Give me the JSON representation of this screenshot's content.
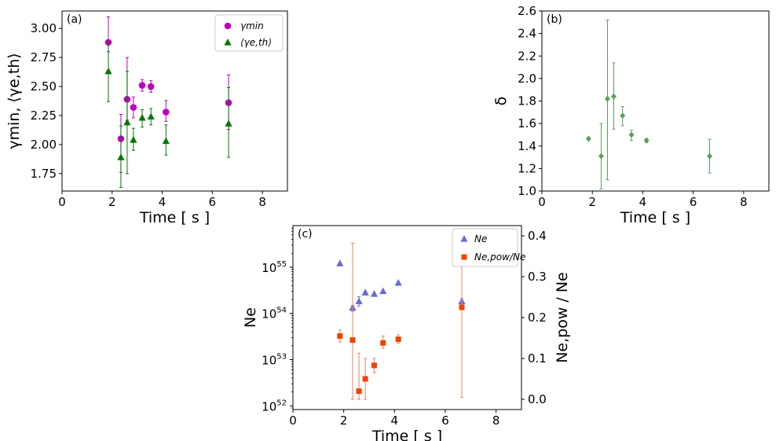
{
  "chart_data": [
    {
      "id": "a",
      "type": "scatter",
      "panel_label": "(a)",
      "xlabel": "Time [ s ]",
      "ylabel": "γmin, ⟨γe,th⟩",
      "xlim": [
        0,
        9
      ],
      "ylim": [
        1.6,
        3.15
      ],
      "xticks": [
        0,
        2,
        4,
        6,
        8
      ],
      "xtick_labels": [
        "0",
        "2",
        "4",
        "6",
        "8"
      ],
      "yticks": [
        1.75,
        2.0,
        2.25,
        2.5,
        2.75,
        3.0
      ],
      "ytick_labels": [
        "1.75",
        "2.00",
        "2.25",
        "2.50",
        "2.75",
        "3.00"
      ],
      "legend_position": "top-right",
      "series": [
        {
          "name": "γmin",
          "marker": "circle",
          "color": "#bf00bf",
          "points": [
            {
              "x": 1.85,
              "y": 2.88,
              "lo": 2.8,
              "hi": 3.1
            },
            {
              "x": 2.35,
              "y": 2.05,
              "lo": 1.76,
              "hi": 2.26
            },
            {
              "x": 2.6,
              "y": 2.39,
              "lo": 2.21,
              "hi": 2.75
            },
            {
              "x": 2.85,
              "y": 2.32,
              "lo": 2.23,
              "hi": 2.41
            },
            {
              "x": 3.2,
              "y": 2.51,
              "lo": 2.46,
              "hi": 2.56
            },
            {
              "x": 3.55,
              "y": 2.5,
              "lo": 2.45,
              "hi": 2.55
            },
            {
              "x": 4.15,
              "y": 2.28,
              "lo": 2.2,
              "hi": 2.38
            },
            {
              "x": 6.65,
              "y": 2.36,
              "lo": 2.13,
              "hi": 2.6
            }
          ]
        },
        {
          "name": "⟨γe,th⟩",
          "marker": "triangle",
          "color": "#007800",
          "points": [
            {
              "x": 1.85,
              "y": 2.63,
              "lo": 2.37,
              "hi": 2.88
            },
            {
              "x": 2.35,
              "y": 1.89,
              "lo": 1.63,
              "hi": 2.16
            },
            {
              "x": 2.6,
              "y": 2.19,
              "lo": 1.75,
              "hi": 2.63
            },
            {
              "x": 2.85,
              "y": 2.04,
              "lo": 1.95,
              "hi": 2.14
            },
            {
              "x": 3.2,
              "y": 2.23,
              "lo": 2.15,
              "hi": 2.3
            },
            {
              "x": 3.55,
              "y": 2.24,
              "lo": 2.17,
              "hi": 2.31
            },
            {
              "x": 4.15,
              "y": 2.03,
              "lo": 1.91,
              "hi": 2.17
            },
            {
              "x": 6.65,
              "y": 2.18,
              "lo": 1.89,
              "hi": 2.49
            }
          ]
        }
      ]
    },
    {
      "id": "b",
      "type": "scatter",
      "panel_label": "(b)",
      "xlabel": "Time [ s ]",
      "ylabel": "δ",
      "xlim": [
        0,
        9
      ],
      "ylim": [
        1.0,
        2.6
      ],
      "xticks": [
        0,
        2,
        4,
        6,
        8
      ],
      "xtick_labels": [
        "0",
        "2",
        "4",
        "6",
        "8"
      ],
      "yticks": [
        1.0,
        1.2,
        1.4,
        1.6,
        1.8,
        2.0,
        2.2,
        2.4,
        2.6
      ],
      "ytick_labels": [
        "1.0",
        "1.2",
        "1.4",
        "1.6",
        "1.8",
        "2.0",
        "2.2",
        "2.4",
        "2.6"
      ],
      "series": [
        {
          "name": "",
          "marker": "diamond",
          "color": "#5a9e5a",
          "points": [
            {
              "x": 1.85,
              "y": 1.465,
              "lo": 1.455,
              "hi": 1.475
            },
            {
              "x": 2.35,
              "y": 1.31,
              "lo": 1.02,
              "hi": 1.6
            },
            {
              "x": 2.6,
              "y": 1.82,
              "lo": 1.1,
              "hi": 2.52
            },
            {
              "x": 2.85,
              "y": 1.84,
              "lo": 1.55,
              "hi": 2.14
            },
            {
              "x": 3.2,
              "y": 1.67,
              "lo": 1.58,
              "hi": 1.75
            },
            {
              "x": 3.55,
              "y": 1.5,
              "lo": 1.45,
              "hi": 1.54
            },
            {
              "x": 4.15,
              "y": 1.45,
              "lo": 1.43,
              "hi": 1.465
            },
            {
              "x": 6.65,
              "y": 1.31,
              "lo": 1.16,
              "hi": 1.46
            }
          ]
        }
      ]
    },
    {
      "id": "c",
      "type": "scatter",
      "panel_label": "(c)",
      "xlabel": "Time [ s ]",
      "ylabel": "Ne",
      "y2label": "Ne,pow / Ne",
      "xlim": [
        0,
        9
      ],
      "yscale": "log",
      "ylim_log10": [
        51.92,
        55.9
      ],
      "y2lim": [
        -0.025,
        0.425
      ],
      "xticks": [
        0,
        2,
        4,
        6,
        8
      ],
      "xtick_labels": [
        "0",
        "2",
        "4",
        "6",
        "8"
      ],
      "yticks_log10": [
        52,
        53,
        54,
        55
      ],
      "ytick_base": "10",
      "ytick_exponents": [
        "52",
        "53",
        "54",
        "55"
      ],
      "y2ticks": [
        0.0,
        0.1,
        0.2,
        0.3,
        0.4
      ],
      "y2tick_labels": [
        "0.0",
        "0.1",
        "0.2",
        "0.3",
        "0.4"
      ],
      "legend_position": "top-right",
      "series": [
        {
          "name": "Ne",
          "axis": "left",
          "marker": "triangle",
          "color": "#6a6ad8",
          "points": [
            {
              "x": 1.85,
              "y_log10": 55.08
            },
            {
              "x": 2.35,
              "y_log10": 54.12,
              "lo": 54.05,
              "hi": 54.17
            },
            {
              "x": 2.6,
              "y_log10": 54.26,
              "lo": 54.16,
              "hi": 54.36
            },
            {
              "x": 2.85,
              "y_log10": 54.45
            },
            {
              "x": 3.2,
              "y_log10": 54.42
            },
            {
              "x": 3.55,
              "y_log10": 54.48
            },
            {
              "x": 4.15,
              "y_log10": 54.66
            },
            {
              "x": 6.65,
              "y_log10": 54.26,
              "lo": 54.2,
              "hi": 54.32
            }
          ]
        },
        {
          "name": "Ne,pow/Ne",
          "axis": "right",
          "marker": "square",
          "color": "#ee4400",
          "points": [
            {
              "x": 1.85,
              "y": 0.155,
              "lo": 0.14,
              "hi": 0.17
            },
            {
              "x": 2.35,
              "y": 0.145,
              "lo": 0.0,
              "hi": 0.382
            },
            {
              "x": 2.6,
              "y": 0.02,
              "lo": 0.0,
              "hi": 0.113
            },
            {
              "x": 2.85,
              "y": 0.05,
              "lo": 0.0,
              "hi": 0.1
            },
            {
              "x": 3.2,
              "y": 0.083,
              "lo": 0.065,
              "hi": 0.1
            },
            {
              "x": 3.55,
              "y": 0.138,
              "lo": 0.125,
              "hi": 0.155
            },
            {
              "x": 4.15,
              "y": 0.147,
              "lo": 0.137,
              "hi": 0.158
            },
            {
              "x": 6.65,
              "y": 0.225,
              "lo": 0.005,
              "hi": 0.445
            }
          ]
        }
      ]
    }
  ]
}
